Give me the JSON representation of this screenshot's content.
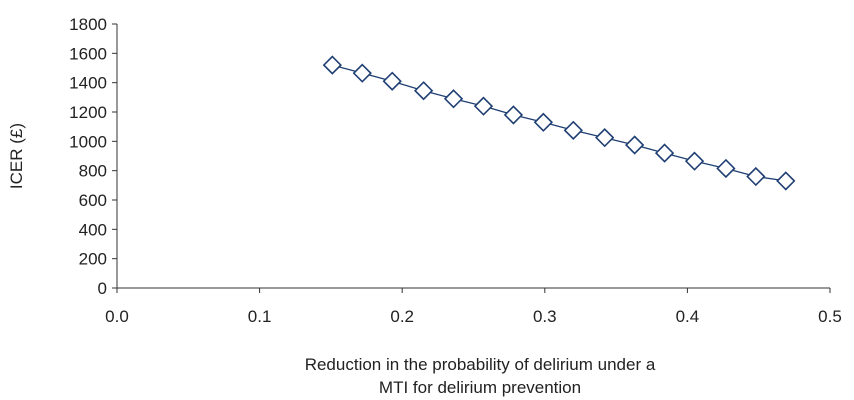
{
  "chart_data": {
    "type": "line",
    "title": "",
    "xlabel_lines": [
      "Reduction in the probability of delirium under a",
      "MTI for delirium prevention"
    ],
    "ylabel": "ICER (£)",
    "xlim": [
      0,
      0.5
    ],
    "ylim": [
      0,
      1800
    ],
    "x_ticks": [
      "0.0",
      "0.1",
      "0.2",
      "0.3",
      "0.4",
      "0.5"
    ],
    "y_ticks": [
      "0",
      "200",
      "400",
      "600",
      "800",
      "1000",
      "1200",
      "1400",
      "1600",
      "1800"
    ],
    "grid": false,
    "legend": "none",
    "marker": "diamond-open",
    "series": [
      {
        "color": "#1f3f73",
        "x": [
          0.151,
          0.172,
          0.193,
          0.215,
          0.236,
          0.257,
          0.278,
          0.299,
          0.32,
          0.342,
          0.363,
          0.384,
          0.405,
          0.427,
          0.448,
          0.469
        ],
        "y": [
          1520,
          1465,
          1410,
          1345,
          1290,
          1240,
          1180,
          1130,
          1075,
          1025,
          975,
          920,
          865,
          815,
          760,
          730
        ]
      }
    ]
  }
}
